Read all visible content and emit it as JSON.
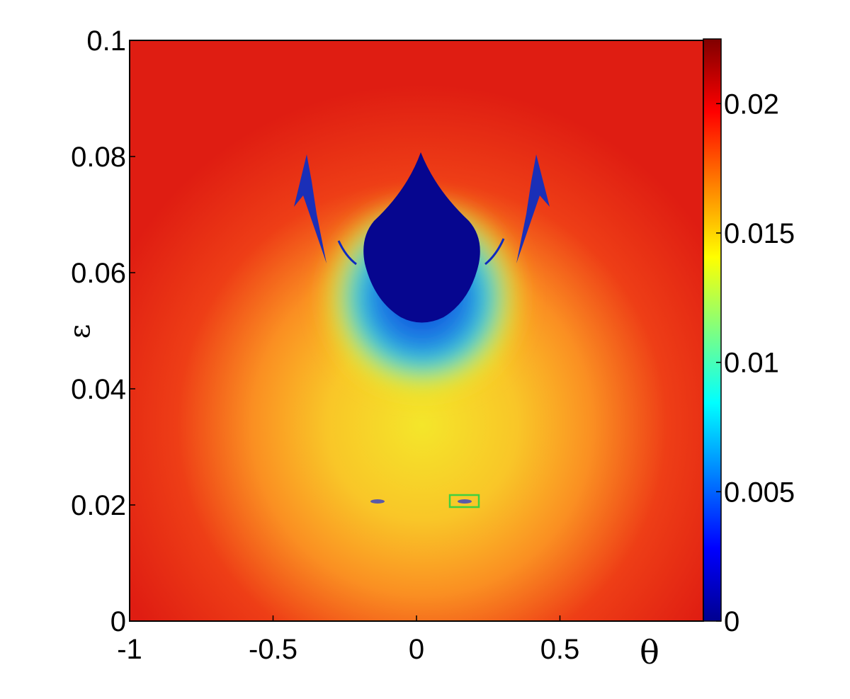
{
  "chart_data": {
    "type": "heatmap",
    "xlabel": "θ",
    "ylabel": "ε",
    "xlim": [
      -1,
      1
    ],
    "ylim": [
      0,
      0.1
    ],
    "x_ticks": [
      {
        "value": -1,
        "label": "-1"
      },
      {
        "value": -0.5,
        "label": "-0.5"
      },
      {
        "value": 0,
        "label": "0"
      },
      {
        "value": 0.5,
        "label": "0.5"
      }
    ],
    "y_ticks": [
      {
        "value": 0,
        "label": "0"
      },
      {
        "value": 0.02,
        "label": "0.02"
      },
      {
        "value": 0.04,
        "label": "0.04"
      },
      {
        "value": 0.06,
        "label": "0.06"
      },
      {
        "value": 0.08,
        "label": "0.08"
      },
      {
        "value": 0.1,
        "label": "0.1"
      }
    ],
    "colorbar": {
      "colormap": "jet",
      "range": [
        0,
        0.0225
      ],
      "ticks": [
        {
          "value": 0,
          "label": "0"
        },
        {
          "value": 0.005,
          "label": "0.005"
        },
        {
          "value": 0.01,
          "label": "0.01"
        },
        {
          "value": 0.015,
          "label": "0.015"
        },
        {
          "value": 0.02,
          "label": "0.02"
        }
      ]
    },
    "features": {
      "central_low_region": {
        "theta_range": [
          -0.2,
          0.2
        ],
        "epsilon_range": [
          0.05,
          0.081
        ],
        "value": 0
      },
      "side_low_tongues": [
        {
          "theta_tip": -0.4,
          "epsilon_tip": 0.079
        },
        {
          "theta_tip": 0.4,
          "epsilon_tip": 0.079
        }
      ],
      "small_low_islands": [
        {
          "theta": -0.15,
          "epsilon": 0.0205
        },
        {
          "theta": 0.15,
          "epsilon": 0.0205
        }
      ],
      "highlight_box": {
        "theta_range": [
          0.1,
          0.2
        ],
        "epsilon_range": [
          0.0194,
          0.0214
        ],
        "color": "#3fd03f"
      }
    },
    "grid": false
  }
}
